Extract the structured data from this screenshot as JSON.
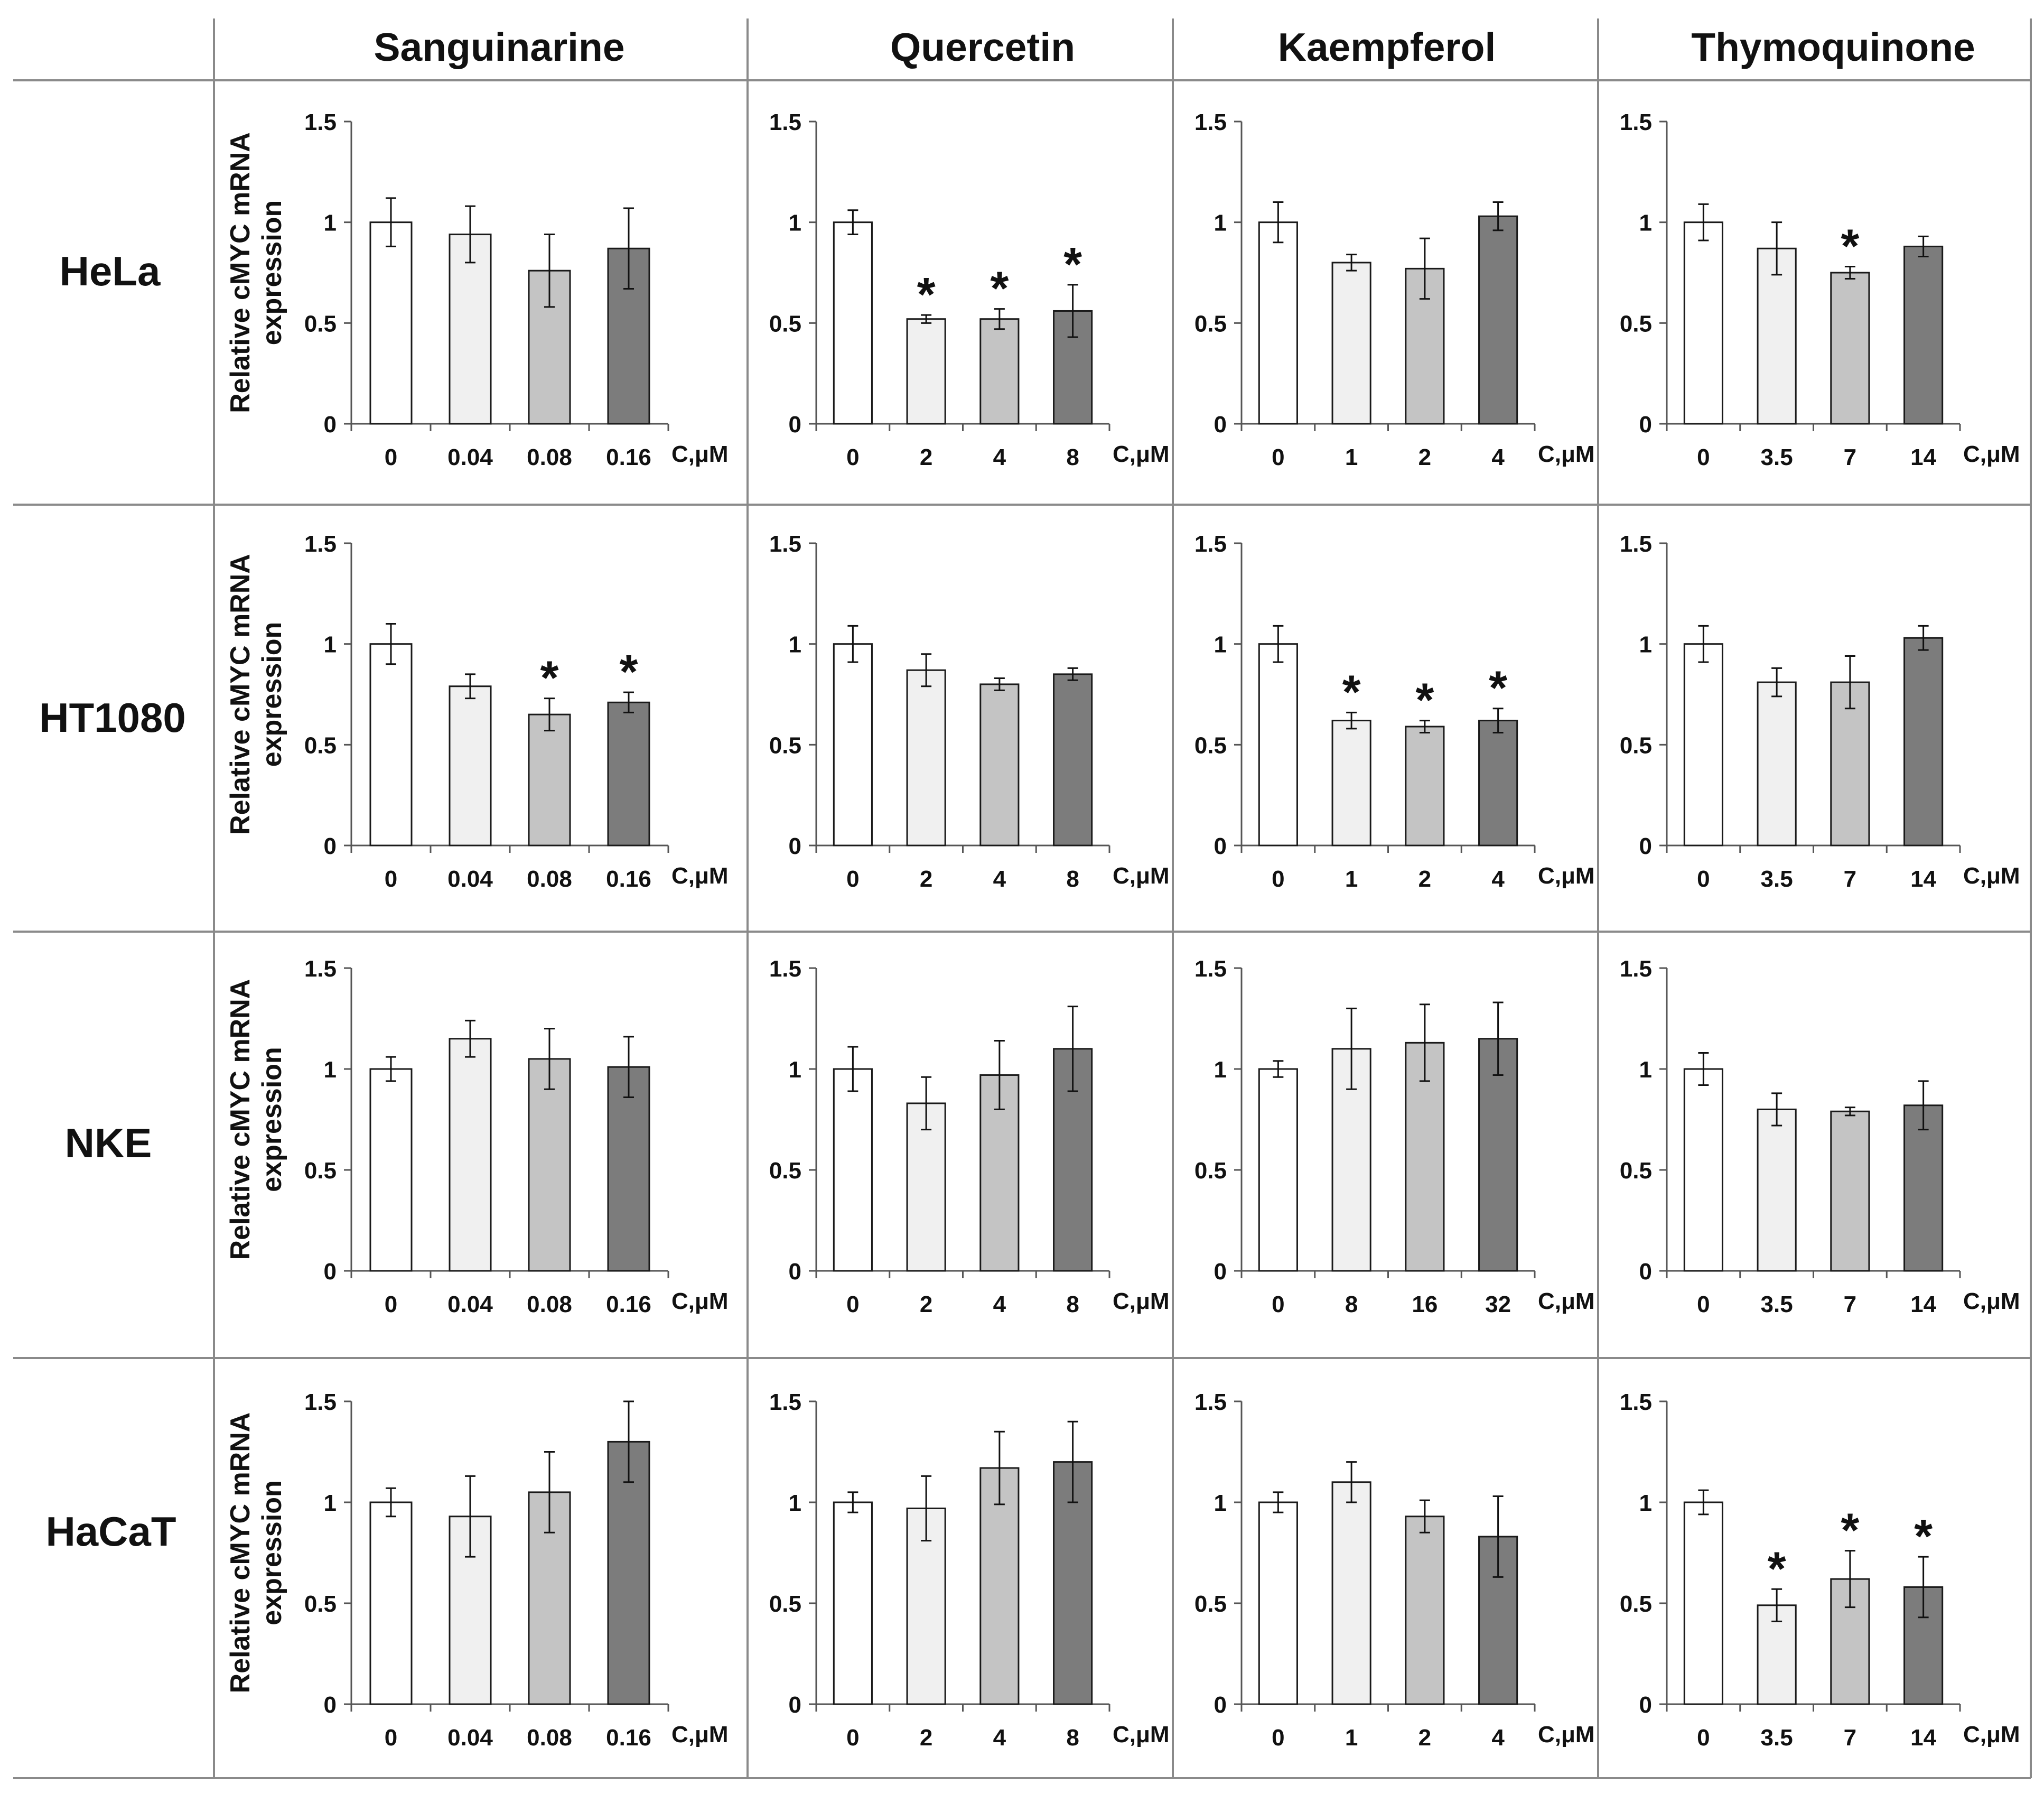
{
  "figure": {
    "row_headers": [
      "HeLa",
      "HT1080",
      "NKE",
      "HaCaT"
    ],
    "column_headers": [
      "Sanguinarine",
      "Quercetin",
      "Kaempferol",
      "Thymoquinone"
    ],
    "ylabel_line1": "Relative cMYC mRNA",
    "ylabel_line2": "expression",
    "x_unit": "C,μM",
    "significance_marker": "*",
    "bar_colors": [
      "#ffffff",
      "#f0f0f0",
      "#c4c4c4",
      "#7c7c7c"
    ]
  },
  "chart_data": [
    {
      "type": "bar",
      "row": "HeLa",
      "compound": "Sanguinarine",
      "categories": [
        "0",
        "0.04",
        "0.08",
        "0.16"
      ],
      "values": [
        1.0,
        0.94,
        0.76,
        0.87
      ],
      "errors": [
        0.12,
        0.14,
        0.18,
        0.2
      ],
      "significant": [
        false,
        false,
        false,
        false
      ],
      "ylim": [
        0,
        1.5
      ],
      "yticks": [
        "0",
        "0.5",
        "1",
        "1.5"
      ],
      "xlabel": "C,μM",
      "ylabel": "Relative cMYC mRNA expression"
    },
    {
      "type": "bar",
      "row": "HeLa",
      "compound": "Quercetin",
      "categories": [
        "0",
        "2",
        "4",
        "8"
      ],
      "values": [
        1.0,
        0.52,
        0.52,
        0.56
      ],
      "errors": [
        0.06,
        0.02,
        0.05,
        0.13
      ],
      "significant": [
        false,
        true,
        true,
        true
      ],
      "ylim": [
        0,
        1.5
      ],
      "yticks": [
        "0",
        "0.5",
        "1",
        "1.5"
      ],
      "xlabel": "C,μM"
    },
    {
      "type": "bar",
      "row": "HeLa",
      "compound": "Kaempferol",
      "categories": [
        "0",
        "1",
        "2",
        "4"
      ],
      "values": [
        1.0,
        0.8,
        0.77,
        1.03
      ],
      "errors": [
        0.1,
        0.04,
        0.15,
        0.07
      ],
      "significant": [
        false,
        false,
        false,
        false
      ],
      "ylim": [
        0,
        1.5
      ],
      "yticks": [
        "0",
        "0.5",
        "1",
        "1.5"
      ],
      "xlabel": "C,μM"
    },
    {
      "type": "bar",
      "row": "HeLa",
      "compound": "Thymoquinone",
      "categories": [
        "0",
        "3.5",
        "7",
        "14"
      ],
      "values": [
        1.0,
        0.87,
        0.75,
        0.88
      ],
      "errors": [
        0.09,
        0.13,
        0.03,
        0.05
      ],
      "significant": [
        false,
        false,
        true,
        false
      ],
      "ylim": [
        0,
        1.5
      ],
      "yticks": [
        "0",
        "0.5",
        "1",
        "1.5"
      ],
      "xlabel": "C,μM"
    },
    {
      "type": "bar",
      "row": "HT1080",
      "compound": "Sanguinarine",
      "categories": [
        "0",
        "0.04",
        "0.08",
        "0.16"
      ],
      "values": [
        1.0,
        0.79,
        0.65,
        0.71
      ],
      "errors": [
        0.1,
        0.06,
        0.08,
        0.05
      ],
      "significant": [
        false,
        false,
        true,
        true
      ],
      "ylim": [
        0,
        1.5
      ],
      "yticks": [
        "0",
        "0.5",
        "1",
        "1.5"
      ],
      "xlabel": "C,μM",
      "ylabel": "Relative cMYC mRNA expression"
    },
    {
      "type": "bar",
      "row": "HT1080",
      "compound": "Quercetin",
      "categories": [
        "0",
        "2",
        "4",
        "8"
      ],
      "values": [
        1.0,
        0.87,
        0.8,
        0.85
      ],
      "errors": [
        0.09,
        0.08,
        0.03,
        0.03
      ],
      "significant": [
        false,
        false,
        false,
        false
      ],
      "ylim": [
        0,
        1.5
      ],
      "yticks": [
        "0",
        "0.5",
        "1",
        "1.5"
      ],
      "xlabel": "C,μM"
    },
    {
      "type": "bar",
      "row": "HT1080",
      "compound": "Kaempferol",
      "categories": [
        "0",
        "1",
        "2",
        "4"
      ],
      "values": [
        1.0,
        0.62,
        0.59,
        0.62
      ],
      "errors": [
        0.09,
        0.04,
        0.03,
        0.06
      ],
      "significant": [
        false,
        true,
        true,
        true
      ],
      "ylim": [
        0,
        1.5
      ],
      "yticks": [
        "0",
        "0.5",
        "1",
        "1.5"
      ],
      "xlabel": "C,μM"
    },
    {
      "type": "bar",
      "row": "HT1080",
      "compound": "Thymoquinone",
      "categories": [
        "0",
        "3.5",
        "7",
        "14"
      ],
      "values": [
        1.0,
        0.81,
        0.81,
        1.03
      ],
      "errors": [
        0.09,
        0.07,
        0.13,
        0.06
      ],
      "significant": [
        false,
        false,
        false,
        false
      ],
      "ylim": [
        0,
        1.5
      ],
      "yticks": [
        "0",
        "0.5",
        "1",
        "1.5"
      ],
      "xlabel": "C,μM"
    },
    {
      "type": "bar",
      "row": "NKE",
      "compound": "Sanguinarine",
      "categories": [
        "0",
        "0.04",
        "0.08",
        "0.16"
      ],
      "values": [
        1.0,
        1.15,
        1.05,
        1.01
      ],
      "errors": [
        0.06,
        0.09,
        0.15,
        0.15
      ],
      "significant": [
        false,
        false,
        false,
        false
      ],
      "ylim": [
        0,
        1.5
      ],
      "yticks": [
        "0",
        "0.5",
        "1",
        "1.5"
      ],
      "xlabel": "C,μM",
      "ylabel": "Relative cMYC mRNA expression"
    },
    {
      "type": "bar",
      "row": "NKE",
      "compound": "Quercetin",
      "categories": [
        "0",
        "2",
        "4",
        "8"
      ],
      "values": [
        1.0,
        0.83,
        0.97,
        1.1
      ],
      "errors": [
        0.11,
        0.13,
        0.17,
        0.21
      ],
      "significant": [
        false,
        false,
        false,
        false
      ],
      "ylim": [
        0,
        1.5
      ],
      "yticks": [
        "0",
        "0.5",
        "1",
        "1.5"
      ],
      "xlabel": "C,μM"
    },
    {
      "type": "bar",
      "row": "NKE",
      "compound": "Kaempferol",
      "categories": [
        "0",
        "8",
        "16",
        "32"
      ],
      "values": [
        1.0,
        1.1,
        1.13,
        1.15
      ],
      "errors": [
        0.04,
        0.2,
        0.19,
        0.18
      ],
      "significant": [
        false,
        false,
        false,
        false
      ],
      "ylim": [
        0,
        1.5
      ],
      "yticks": [
        "0",
        "0.5",
        "1",
        "1.5"
      ],
      "xlabel": "C,μM"
    },
    {
      "type": "bar",
      "row": "NKE",
      "compound": "Thymoquinone",
      "categories": [
        "0",
        "3.5",
        "7",
        "14"
      ],
      "values": [
        1.0,
        0.8,
        0.79,
        0.82
      ],
      "errors": [
        0.08,
        0.08,
        0.02,
        0.12
      ],
      "significant": [
        false,
        false,
        false,
        false
      ],
      "ylim": [
        0,
        1.5
      ],
      "yticks": [
        "0",
        "0.5",
        "1",
        "1.5"
      ],
      "xlabel": "C,μM"
    },
    {
      "type": "bar",
      "row": "HaCaT",
      "compound": "Sanguinarine",
      "categories": [
        "0",
        "0.04",
        "0.08",
        "0.16"
      ],
      "values": [
        1.0,
        0.93,
        1.05,
        1.3
      ],
      "errors": [
        0.07,
        0.2,
        0.2,
        0.2
      ],
      "significant": [
        false,
        false,
        false,
        false
      ],
      "ylim": [
        0,
        1.5
      ],
      "yticks": [
        "0",
        "0.5",
        "1",
        "1.5"
      ],
      "xlabel": "C,μM",
      "ylabel": "Relative cMYC mRNA expression"
    },
    {
      "type": "bar",
      "row": "HaCaT",
      "compound": "Quercetin",
      "categories": [
        "0",
        "2",
        "4",
        "8"
      ],
      "values": [
        1.0,
        0.97,
        1.17,
        1.2
      ],
      "errors": [
        0.05,
        0.16,
        0.18,
        0.2
      ],
      "significant": [
        false,
        false,
        false,
        false
      ],
      "ylim": [
        0,
        1.5
      ],
      "yticks": [
        "0",
        "0.5",
        "1",
        "1.5"
      ],
      "xlabel": "C,μM"
    },
    {
      "type": "bar",
      "row": "HaCaT",
      "compound": "Kaempferol",
      "categories": [
        "0",
        "1",
        "2",
        "4"
      ],
      "values": [
        1.0,
        1.1,
        0.93,
        0.83
      ],
      "errors": [
        0.05,
        0.1,
        0.08,
        0.2
      ],
      "significant": [
        false,
        false,
        false,
        false
      ],
      "ylim": [
        0,
        1.5
      ],
      "yticks": [
        "0",
        "0.5",
        "1",
        "1.5"
      ],
      "xlabel": "C,μM"
    },
    {
      "type": "bar",
      "row": "HaCaT",
      "compound": "Thymoquinone",
      "categories": [
        "0",
        "3.5",
        "7",
        "14"
      ],
      "values": [
        1.0,
        0.49,
        0.62,
        0.58
      ],
      "errors": [
        0.06,
        0.08,
        0.14,
        0.15
      ],
      "significant": [
        false,
        true,
        true,
        true
      ],
      "ylim": [
        0,
        1.5
      ],
      "yticks": [
        "0",
        "0.5",
        "1",
        "1.5"
      ],
      "xlabel": "C,μM"
    }
  ]
}
